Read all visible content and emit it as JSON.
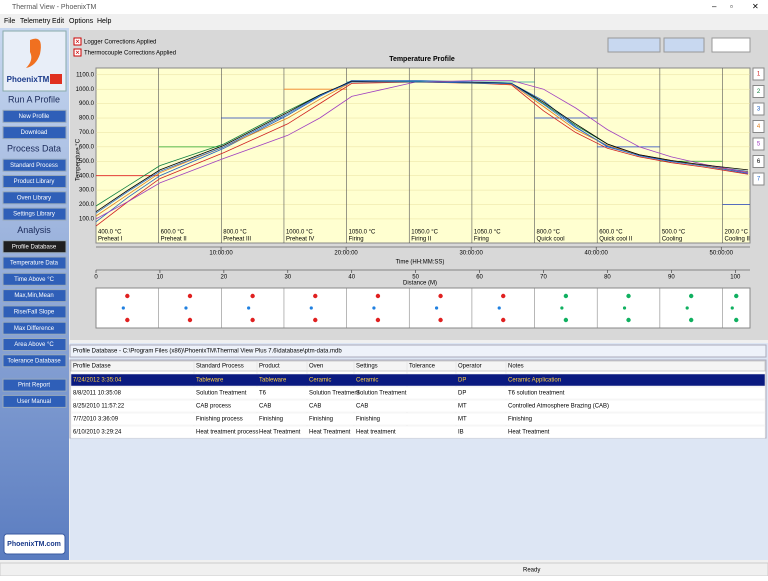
{
  "window": {
    "title": "Thermal View - PhoenixTM",
    "menu": [
      "File",
      "Telemetry",
      "Edit",
      "Options",
      "Help"
    ]
  },
  "sidebar": {
    "logo": "PhoenixTM",
    "items": [
      {
        "label": "Run A Profile",
        "kind": "heading"
      },
      {
        "label": "New Profile",
        "kind": "button"
      },
      {
        "label": "Download",
        "kind": "button"
      },
      {
        "label": "Process Data",
        "kind": "heading"
      },
      {
        "label": "Standard Process",
        "kind": "button"
      },
      {
        "label": "Product Library",
        "kind": "button"
      },
      {
        "label": "Oven Library",
        "kind": "button"
      },
      {
        "label": "Settings Library",
        "kind": "button"
      },
      {
        "label": "Analysis",
        "kind": "heading"
      },
      {
        "label": "Profile Database",
        "kind": "selected"
      },
      {
        "label": "Temperature Data",
        "kind": "button"
      },
      {
        "label": "Time Above °C",
        "kind": "button"
      },
      {
        "label": "Max,Min,Mean",
        "kind": "button"
      },
      {
        "label": "Rise/Fall Slope",
        "kind": "button"
      },
      {
        "label": "Max Difference",
        "kind": "button"
      },
      {
        "label": "Area Above °C",
        "kind": "button"
      },
      {
        "label": "Tolerance Database",
        "kind": "button"
      },
      {
        "label": "Print Report",
        "kind": "button"
      },
      {
        "label": "User Manual",
        "kind": "button"
      }
    ],
    "footer": "PhoenixTM.com"
  },
  "chart_data": {
    "type": "line",
    "title": "Temperature Profile",
    "ylabel": "Temperature °C",
    "xlabel": "Distance (M)",
    "time_label": "Time (HH:MM:SS)",
    "checkboxes": [
      "Logger Corrections Applied",
      "Thermocouple Corrections Applied"
    ],
    "xlim": [
      0,
      102.3
    ],
    "xticks": [
      0,
      10,
      20,
      30,
      40,
      50,
      60,
      70,
      80,
      90,
      100
    ],
    "ylim": [
      -67,
      1147
    ],
    "yticks": [
      {
        "value": 100,
        "label": "100.0"
      },
      {
        "value": 200,
        "label": "200.0"
      },
      {
        "value": 300,
        "label": "300.0"
      },
      {
        "value": 400,
        "label": "400.0"
      },
      {
        "value": 500,
        "label": "500.0"
      },
      {
        "value": 600,
        "label": "600.0"
      },
      {
        "value": 700,
        "label": "700.0"
      },
      {
        "value": 800,
        "label": "800.0"
      },
      {
        "value": 900,
        "label": "900.0"
      },
      {
        "value": 1000,
        "label": "1000.0"
      },
      {
        "value": 1100,
        "label": "1100.0"
      }
    ],
    "time_lim": [
      0,
      52.3
    ],
    "time_ticks": [
      {
        "value": 10,
        "label": "10:00:00"
      },
      {
        "value": 20,
        "label": "20:00:00"
      },
      {
        "value": 30,
        "label": "30:00:00"
      },
      {
        "value": 40,
        "label": "40:00:00"
      },
      {
        "value": 50,
        "label": "50:00:00"
      }
    ],
    "zone_edges": [
      0,
      9.8,
      19.6,
      29.4,
      39.2,
      49,
      58.8,
      68.6,
      78.4,
      88.2,
      98,
      102.3
    ],
    "zones": [
      {
        "setpoint": 400,
        "setpoint_label": "400.0 °C",
        "name": "Preheat I",
        "color": "#e02020"
      },
      {
        "setpoint": 600,
        "setpoint_label": "600.0 °C",
        "name": "Preheat II",
        "color": "#20a020"
      },
      {
        "setpoint": 800,
        "setpoint_label": "800.0 °C",
        "name": "Preheat III",
        "color": "#2040c0"
      },
      {
        "setpoint": 1000,
        "setpoint_label": "1000.0 °C",
        "name": "Preheat IV",
        "color": "#f08020"
      },
      {
        "setpoint": 1050,
        "setpoint_label": "1050.0 °C",
        "name": "Firing",
        "color": "#20a0a0"
      },
      {
        "setpoint": 1050,
        "setpoint_label": "1050.0 °C",
        "name": "Firing II",
        "color": "#20a0a0"
      },
      {
        "setpoint": 1050,
        "setpoint_label": "1050.0 °C",
        "name": "Firing",
        "color": "#20a0a0"
      },
      {
        "setpoint": 800,
        "setpoint_label": "800.0 °C",
        "name": "Quick cool",
        "color": "#2040c0"
      },
      {
        "setpoint": 600,
        "setpoint_label": "600.0 °C",
        "name": "Quick cool II",
        "color": "#2040c0"
      },
      {
        "setpoint": 500,
        "setpoint_label": "500.0 °C",
        "name": "Cooling",
        "color": "#20a020"
      },
      {
        "setpoint": 200,
        "setpoint_label": "200.0 °C",
        "name": "Cooling II",
        "color": "#2040c0"
      }
    ],
    "x": [
      0,
      5,
      10,
      20,
      30,
      35,
      40,
      50,
      60,
      65,
      70,
      75,
      80,
      85,
      90,
      95,
      102
    ],
    "series": [
      {
        "name": "1",
        "color": "#d02020",
        "values": [
          50,
          220,
          380,
          560,
          760,
          900,
          1040,
          1050,
          1040,
          1030,
          850,
          700,
          590,
          530,
          490,
          460,
          410
        ]
      },
      {
        "name": "2",
        "color": "#108040",
        "values": [
          190,
          330,
          470,
          620,
          850,
          960,
          1050,
          1055,
          1040,
          1040,
          900,
          750,
          620,
          540,
          500,
          470,
          420
        ]
      },
      {
        "name": "3",
        "color": "#2060c0",
        "values": [
          80,
          250,
          400,
          590,
          820,
          950,
          1060,
          1060,
          1050,
          1040,
          920,
          740,
          600,
          540,
          500,
          470,
          430
        ]
      },
      {
        "name": "4",
        "color": "#e08020",
        "values": [
          120,
          270,
          420,
          600,
          800,
          930,
          1050,
          1050,
          1045,
          1035,
          880,
          720,
          610,
          545,
          505,
          470,
          425
        ]
      },
      {
        "name": "5",
        "color": "#a040c0",
        "values": [
          100,
          220,
          350,
          520,
          680,
          800,
          950,
          1050,
          1060,
          1060,
          1000,
          870,
          720,
          600,
          530,
          480,
          420
        ]
      },
      {
        "name": "6",
        "color": "#000000",
        "values": [
          150,
          300,
          440,
          610,
          840,
          960,
          1055,
          1050,
          1045,
          1040,
          910,
          760,
          620,
          545,
          505,
          475,
          440
        ]
      },
      {
        "name": "7",
        "color": "#3070d0",
        "values": [
          140,
          290,
          430,
          600,
          830,
          955,
          1050,
          1052,
          1042,
          1038,
          895,
          735,
          605,
          538,
          498,
          468,
          415
        ]
      }
    ]
  },
  "database": {
    "title": "Profile Database - C:\\Program Files (x86)\\PhoenixTM\\Thermal View Plus 7.6\\database\\ptm-data.mdb",
    "columns": [
      "Profile Datase",
      "Standard Process",
      "Product",
      "Oven",
      "Settings",
      "Tolerance",
      "Operator",
      "Notes"
    ],
    "rows": [
      [
        "7/24/2012 3:35:04",
        "Tableware",
        "Tableware",
        "Ceramic",
        "Ceramic",
        null,
        "DP",
        "Ceramic Application"
      ],
      [
        "8/8/2011 10:35:08",
        "Solution Treatment",
        "T6",
        "Solution Treatment",
        "Solution Treatment",
        null,
        "DP",
        "T6 solution treatment"
      ],
      [
        "8/25/2010 11:57:22",
        "CAB process",
        "CAB",
        "CAB",
        "CAB",
        null,
        "MT",
        "Controlled Atmosphere Brazing (CAB)"
      ],
      [
        "7/7/2010 3:36:09",
        "Finishing process",
        "Finishing",
        "Finishing",
        "Finishing",
        null,
        "MT",
        "Finishing"
      ],
      [
        "6/10/2010 3:29:24",
        "Heat treatment process",
        "Heat Treatment",
        "Heat Treatment",
        "Heat treatment",
        null,
        "IB",
        "Heat Treatment"
      ]
    ]
  },
  "status": "Ready"
}
